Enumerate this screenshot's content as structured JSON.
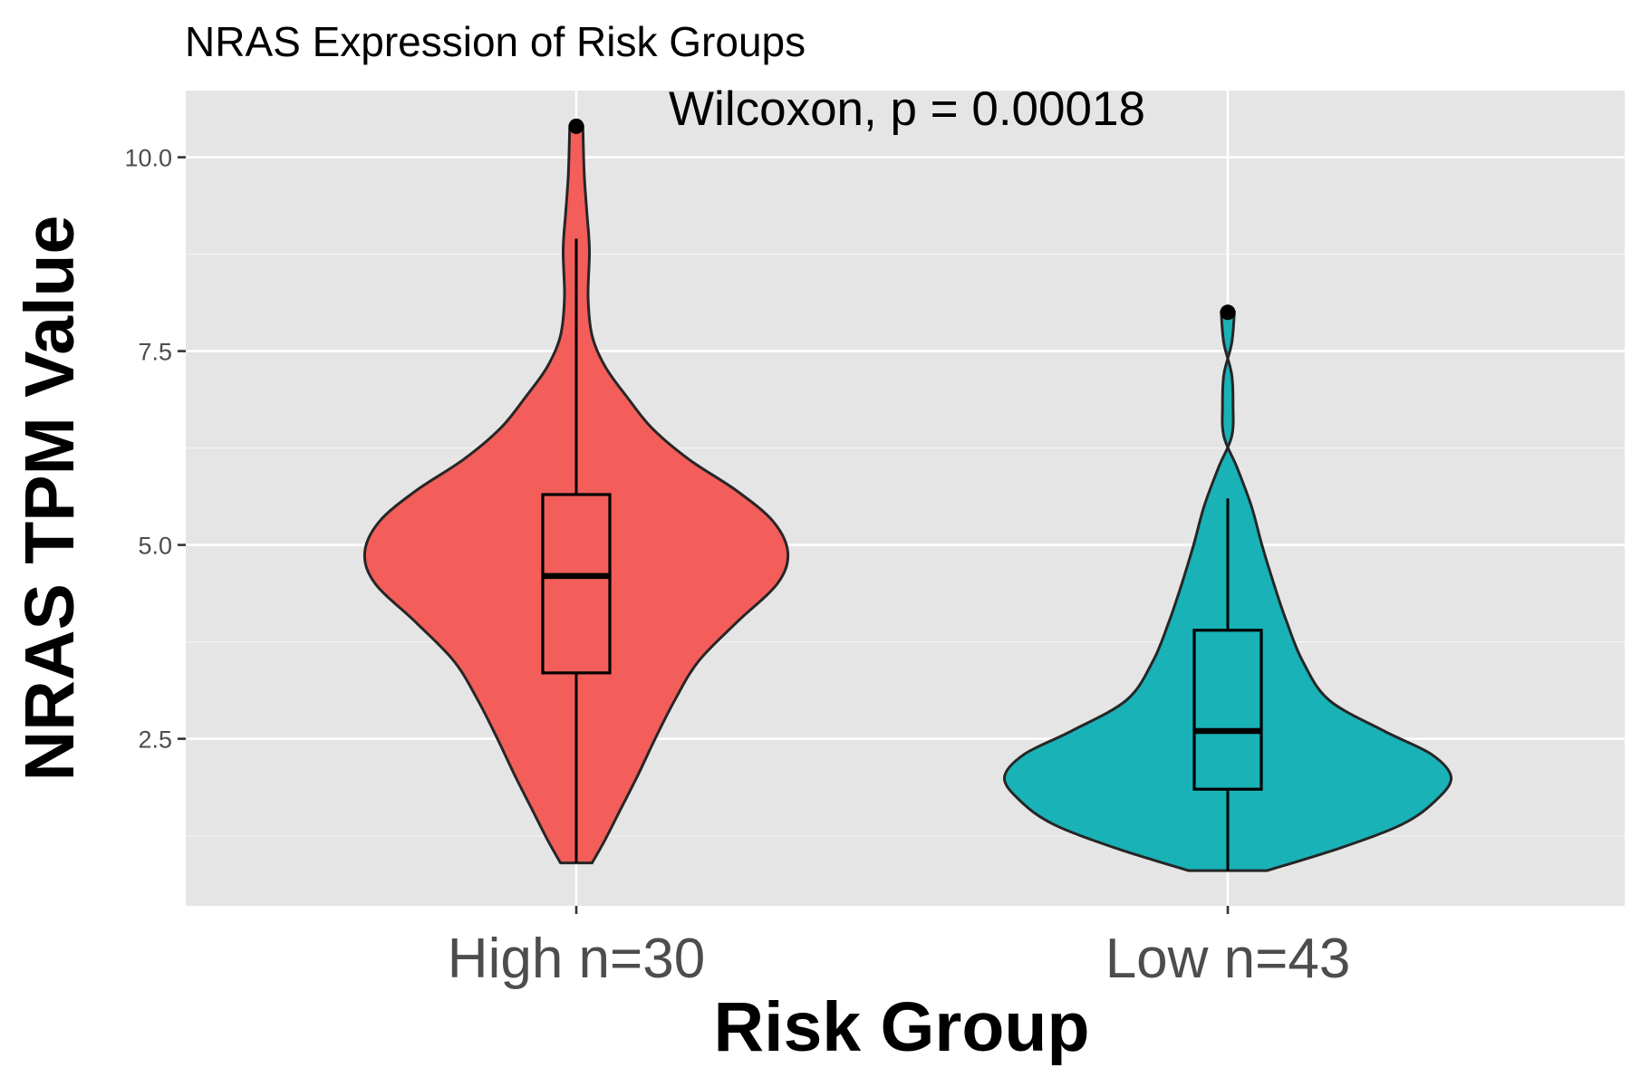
{
  "chart_data": {
    "type": "violin",
    "title": "NRAS Expression of Risk Groups",
    "annotation": "Wilcoxon, p = 0.00018",
    "xlabel": "Risk Group",
    "ylabel": "NRAS TPM Value",
    "categories": [
      "High n=30",
      "Low n=43"
    ],
    "ylim": [
      0.55,
      10.9
    ],
    "yticks": [
      2.5,
      5.0,
      7.5,
      10.0
    ],
    "ytick_labels": [
      "2.5",
      "5.0",
      "7.5",
      "10.0"
    ],
    "grid": true,
    "background": "#e5e5e5",
    "groups": [
      {
        "category": "High n=30",
        "color": "#f35e5a",
        "box": {
          "whisker_low": 0.9,
          "q1": 3.35,
          "median": 4.6,
          "q3": 5.65,
          "whisker_high": 8.95
        },
        "outliers": [
          10.4
        ],
        "density": [
          [
            0.9,
            0.12
          ],
          [
            1.2,
            0.22
          ],
          [
            1.6,
            0.34
          ],
          [
            2.0,
            0.46
          ],
          [
            2.5,
            0.6
          ],
          [
            3.0,
            0.75
          ],
          [
            3.5,
            0.93
          ],
          [
            4.0,
            1.22
          ],
          [
            4.5,
            1.53
          ],
          [
            4.9,
            1.61
          ],
          [
            5.3,
            1.5
          ],
          [
            5.7,
            1.22
          ],
          [
            6.1,
            0.86
          ],
          [
            6.5,
            0.58
          ],
          [
            6.9,
            0.39
          ],
          [
            7.3,
            0.22
          ],
          [
            7.7,
            0.12
          ],
          [
            8.2,
            0.09
          ],
          [
            8.8,
            0.1
          ],
          [
            9.3,
            0.08
          ],
          [
            9.8,
            0.06
          ],
          [
            10.4,
            0.05
          ]
        ]
      },
      {
        "category": "Low n=43",
        "color": "#19b2b7",
        "box": {
          "whisker_low": 0.8,
          "q1": 1.85,
          "median": 2.6,
          "q3": 3.9,
          "whisker_high": 5.6
        },
        "outliers": [
          8.0
        ],
        "density": [
          [
            0.8,
            0.3
          ],
          [
            1.1,
            0.87
          ],
          [
            1.4,
            1.33
          ],
          [
            1.7,
            1.58
          ],
          [
            2.0,
            1.7
          ],
          [
            2.3,
            1.55
          ],
          [
            2.6,
            1.19
          ],
          [
            3.0,
            0.77
          ],
          [
            3.5,
            0.57
          ],
          [
            4.0,
            0.45
          ],
          [
            4.5,
            0.35
          ],
          [
            5.0,
            0.26
          ],
          [
            5.5,
            0.18
          ],
          [
            6.0,
            0.07
          ],
          [
            6.4,
            -0.03
          ],
          [
            6.8,
            -0.04
          ],
          [
            7.2,
            -0.03
          ],
          [
            7.6,
            0.03
          ],
          [
            8.0,
            0.05
          ]
        ]
      }
    ]
  }
}
